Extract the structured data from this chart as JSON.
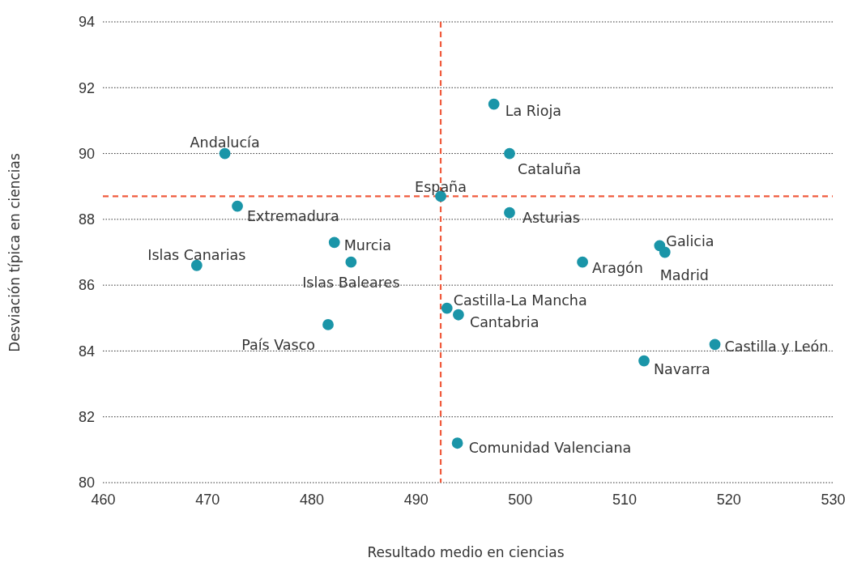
{
  "chart_data": {
    "type": "scatter",
    "xlabel": "Resultado medio en ciencias",
    "ylabel": "Desviación típica en ciencias",
    "x": [
      471.7,
      497.5,
      499.0,
      492.4,
      472.9,
      499.0,
      482.2,
      469.0,
      483.8,
      513.4,
      513.9,
      506.0,
      493.0,
      494.1,
      481.6,
      518.7,
      511.9,
      494.0
    ],
    "series": [
      {
        "color": "#1a95a8",
        "values": [
          90.0,
          91.5,
          90.0,
          88.7,
          88.4,
          88.2,
          87.3,
          86.6,
          86.7,
          87.2,
          87.0,
          86.7,
          85.3,
          85.1,
          84.8,
          84.2,
          83.7,
          81.2
        ]
      }
    ],
    "annotations": [
      {
        "text": "Andalucía",
        "x": 471.7,
        "y": 90.0
      },
      {
        "text": "La Rioja",
        "x": 497.5,
        "y": 91.5
      },
      {
        "text": "Cataluña",
        "x": 499.0,
        "y": 90.0
      },
      {
        "text": "España",
        "x": 492.4,
        "y": 88.7
      },
      {
        "text": "Extremadura",
        "x": 472.9,
        "y": 88.4
      },
      {
        "text": "Asturias",
        "x": 499.0,
        "y": 88.2
      },
      {
        "text": "Murcia",
        "x": 482.2,
        "y": 87.3
      },
      {
        "text": "Islas Canarias",
        "x": 469.0,
        "y": 86.6
      },
      {
        "text": "Islas Baleares",
        "x": 483.8,
        "y": 86.7
      },
      {
        "text": "Galicia",
        "x": 513.4,
        "y": 87.2
      },
      {
        "text": "Madrid",
        "x": 513.9,
        "y": 87.0
      },
      {
        "text": "Aragón",
        "x": 506.0,
        "y": 86.7
      },
      {
        "text": "Castilla-La Mancha",
        "x": 493.0,
        "y": 85.3
      },
      {
        "text": "Cantabria",
        "x": 494.1,
        "y": 85.1
      },
      {
        "text": "País Vasco",
        "x": 481.6,
        "y": 84.8
      },
      {
        "text": "Castilla y León",
        "x": 518.7,
        "y": 84.2
      },
      {
        "text": "Navarra",
        "x": 511.9,
        "y": 83.7
      },
      {
        "text": "Comunidad Valenciana",
        "x": 494.0,
        "y": 81.2
      }
    ],
    "xlim": [
      460,
      530
    ],
    "xticks": [
      460,
      470,
      480,
      490,
      500,
      510,
      520,
      530
    ],
    "ylim": [
      80,
      94
    ],
    "yticks": [
      80,
      82,
      84,
      86,
      88,
      90,
      92,
      94
    ],
    "grid": "y",
    "marker": "circle",
    "ref_lines": [
      {
        "axis": "x",
        "value": 492.4,
        "color": "#f05a3c",
        "line_style": "dashed"
      },
      {
        "axis": "y",
        "value": 88.7,
        "color": "#f05a3c",
        "line_style": "dashed"
      }
    ]
  }
}
